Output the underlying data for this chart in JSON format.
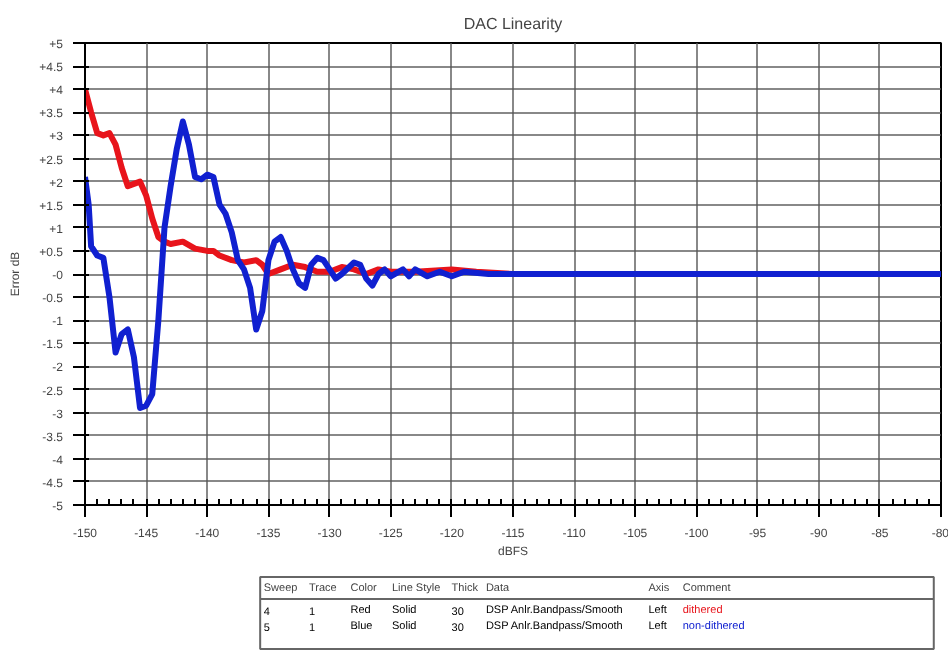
{
  "chart_data": {
    "type": "line",
    "title": "DAC Linearity",
    "xlabel": "dBFS",
    "ylabel": "Error dB",
    "xlim": [
      -150,
      -80
    ],
    "xticks": [
      -150,
      -145,
      -140,
      -135,
      -130,
      -125,
      -120,
      -115,
      -110,
      -105,
      -100,
      -95,
      -90,
      -85,
      -80
    ],
    "ylim": [
      -5,
      5
    ],
    "yticks": [
      {
        "value": -5,
        "label": "-5"
      },
      {
        "value": -4.5,
        "label": "-4.5"
      },
      {
        "value": -4,
        "label": "-4"
      },
      {
        "value": -3.5,
        "label": "-3.5"
      },
      {
        "value": -3,
        "label": "-3"
      },
      {
        "value": -2.5,
        "label": "-2.5"
      },
      {
        "value": -2,
        "label": "-2"
      },
      {
        "value": -1.5,
        "label": "-1.5"
      },
      {
        "value": -1,
        "label": "-1"
      },
      {
        "value": -0.5,
        "label": "-0.5"
      },
      {
        "value": 0,
        "label": "-0"
      },
      {
        "value": 0.5,
        "label": "+0.5"
      },
      {
        "value": 1,
        "label": "+1"
      },
      {
        "value": 1.5,
        "label": "+1.5"
      },
      {
        "value": 2,
        "label": "+2"
      },
      {
        "value": 2.5,
        "label": "+2.5"
      },
      {
        "value": 3,
        "label": "+3"
      },
      {
        "value": 3.5,
        "label": "+3.5"
      },
      {
        "value": 4,
        "label": "+4"
      },
      {
        "value": 4.5,
        "label": "+4.5"
      },
      {
        "value": 5,
        "label": "+5"
      }
    ],
    "grid": true,
    "legend": "bottom",
    "line_style": "solid",
    "marker": "none",
    "annotations": [
      "Sweep",
      "Trace",
      "Color",
      "Line Style",
      "Thick",
      "Data",
      "Axis",
      "Comment",
      "4",
      "1",
      "Red",
      "Solid",
      "30",
      "DSP Anlr.Bandpass/Smooth",
      "Left",
      "5",
      "1",
      "Blue",
      "Solid",
      "30",
      "DSP Anlr.Bandpass/Smooth",
      "Left"
    ],
    "series": [
      {
        "name": "dithered",
        "color": "#e8141b",
        "x": [
          -150,
          -149.5,
          -149,
          -148.5,
          -148,
          -147.5,
          -147,
          -146.5,
          -146,
          -145.5,
          -145,
          -144.5,
          -144,
          -143.5,
          -143,
          -142,
          -141,
          -140,
          -139.5,
          -139,
          -138,
          -137,
          -136,
          -135.5,
          -135,
          -134,
          -133,
          -132,
          -131,
          -130,
          -129,
          -128,
          -127,
          -126,
          -125,
          -123,
          -120,
          -118,
          -115,
          -80
        ],
        "values": [
          4.0,
          3.5,
          3.05,
          3.0,
          3.05,
          2.8,
          2.3,
          1.9,
          1.95,
          2.0,
          1.7,
          1.2,
          0.8,
          0.7,
          0.65,
          0.7,
          0.55,
          0.5,
          0.5,
          0.4,
          0.3,
          0.25,
          0.3,
          0.2,
          0.0,
          0.1,
          0.2,
          0.15,
          0.05,
          0.05,
          0.15,
          0.1,
          0.0,
          0.1,
          0.05,
          0.05,
          0.1,
          0.05,
          0.0,
          0.0
        ]
      },
      {
        "name": "non-dithered",
        "color": "#1020d0",
        "x": [
          -150,
          -149.7,
          -149.5,
          -149,
          -148.5,
          -148,
          -147.5,
          -147,
          -146.5,
          -146,
          -145.5,
          -145,
          -144.5,
          -144,
          -143.5,
          -143,
          -142.5,
          -142,
          -141.5,
          -141,
          -140.5,
          -140,
          -139.5,
          -139,
          -138.5,
          -138,
          -137.5,
          -137,
          -136.5,
          -136,
          -135.5,
          -135,
          -134.5,
          -134,
          -133.5,
          -133,
          -132.5,
          -132,
          -131.5,
          -131,
          -130.5,
          -130,
          -129.5,
          -129,
          -128,
          -127.5,
          -127,
          -126.5,
          -126,
          -125.5,
          -125,
          -124,
          -123.5,
          -123,
          -122,
          -121,
          -120,
          -119,
          -117,
          -80
        ],
        "values": [
          2.1,
          1.5,
          0.6,
          0.4,
          0.35,
          -0.5,
          -1.7,
          -1.3,
          -1.2,
          -1.8,
          -2.9,
          -2.85,
          -2.6,
          -1.0,
          1.0,
          1.9,
          2.7,
          3.3,
          2.8,
          2.1,
          2.05,
          2.15,
          2.1,
          1.5,
          1.3,
          0.9,
          0.3,
          0.1,
          -0.3,
          -1.2,
          -0.8,
          0.3,
          0.7,
          0.8,
          0.5,
          0.1,
          -0.2,
          -0.3,
          0.2,
          0.35,
          0.3,
          0.1,
          -0.1,
          0.0,
          0.25,
          0.2,
          -0.1,
          -0.25,
          0.0,
          0.1,
          -0.05,
          0.1,
          -0.05,
          0.1,
          -0.05,
          0.05,
          -0.05,
          0.05,
          0.0,
          0.0
        ]
      }
    ]
  }
}
